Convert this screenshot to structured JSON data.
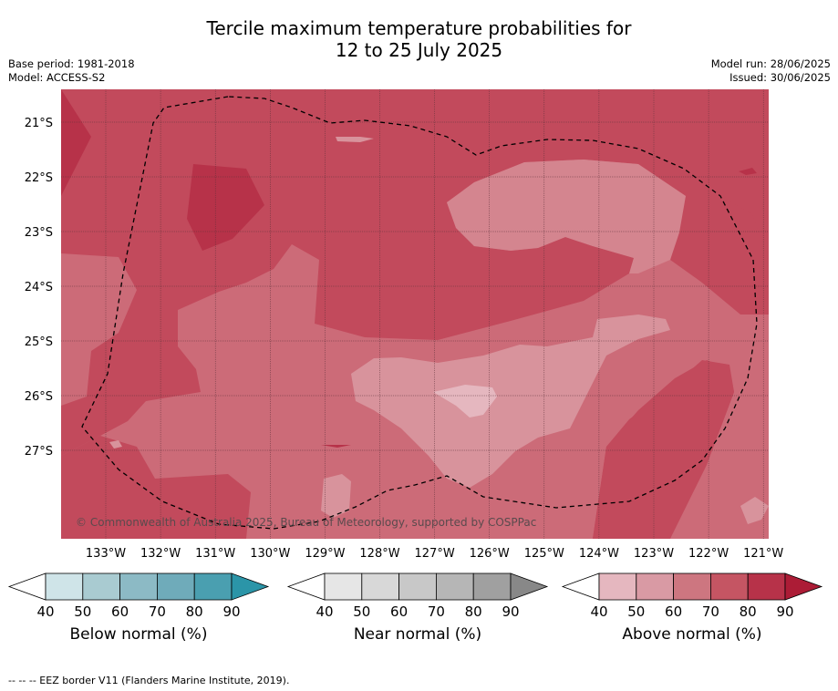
{
  "header": {
    "title_line1": "Tercile maximum temperature probabilities for",
    "title_line2": "12 to 25 July 2025",
    "base_period": "Base period: 1981-2018",
    "model": "Model: ACCESS-S2",
    "model_run": "Model run: 28/06/2025",
    "issued": "Issued: 30/06/2025"
  },
  "map": {
    "lat_labels": [
      "21°S",
      "22°S",
      "23°S",
      "24°S",
      "25°S",
      "26°S",
      "27°S"
    ],
    "lon_labels": [
      "133°W",
      "132°W",
      "131°W",
      "130°W",
      "129°W",
      "128°W",
      "127°W",
      "126°W",
      "125°W",
      "124°W",
      "123°W",
      "122°W",
      "121°W"
    ],
    "copyright": "© Commonwealth of Australia 2025, Bureau of Meteorology, supported by COSPPac",
    "border_line_style": "dashed"
  },
  "colorbars": [
    {
      "caption": "Below normal (%)",
      "ticks": [
        "40",
        "50",
        "60",
        "70",
        "80",
        "90"
      ],
      "colors": [
        "#cfe4e8",
        "#a9cbd1",
        "#8cbac5",
        "#6fabba",
        "#4a9fb0",
        "#2b95a8"
      ]
    },
    {
      "caption": "Near normal (%)",
      "ticks": [
        "40",
        "50",
        "60",
        "70",
        "80",
        "90"
      ],
      "colors": [
        "#e6e6e6",
        "#d8d8d8",
        "#c8c8c8",
        "#b6b6b6",
        "#a0a0a0",
        "#888888"
      ]
    },
    {
      "caption": "Above normal (%)",
      "ticks": [
        "40",
        "50",
        "60",
        "70",
        "80",
        "90"
      ],
      "colors": [
        "#e5b7bf",
        "#d99aa4",
        "#cd7680",
        "#c55563",
        "#b73249",
        "#ac1c36"
      ]
    }
  ],
  "footnote": "--  --  -- EEZ border V11 (Flanders Marine Institute, 2019)."
}
